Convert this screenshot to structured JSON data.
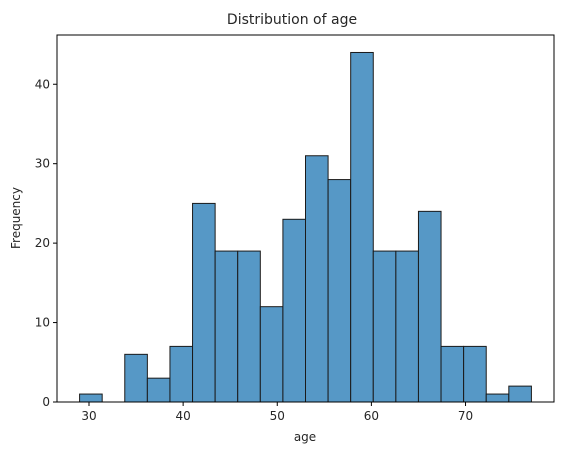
{
  "chart_data": {
    "type": "bar",
    "title": "Distribution of age",
    "xlabel": "age",
    "ylabel": "Frequency",
    "bin_edges": [
      29,
      31.4,
      33.8,
      36.2,
      38.6,
      41,
      43.4,
      45.8,
      48.2,
      50.6,
      53,
      55.4,
      57.8,
      60.2,
      62.6,
      65,
      67.4,
      69.8,
      72.2,
      74.6,
      77
    ],
    "values": [
      1,
      0,
      6,
      3,
      7,
      25,
      19,
      19,
      12,
      23,
      31,
      28,
      44,
      19,
      19,
      24,
      7,
      7,
      1,
      2
    ],
    "xlim": [
      26.6,
      79.4
    ],
    "ylim": [
      0,
      46.2
    ],
    "x_ticks": [
      30,
      40,
      50,
      60,
      70
    ],
    "y_ticks": [
      0,
      10,
      20,
      30,
      40
    ],
    "bar_color": "#5698c6",
    "edge_color": "#1a1a1a",
    "grid": false
  }
}
